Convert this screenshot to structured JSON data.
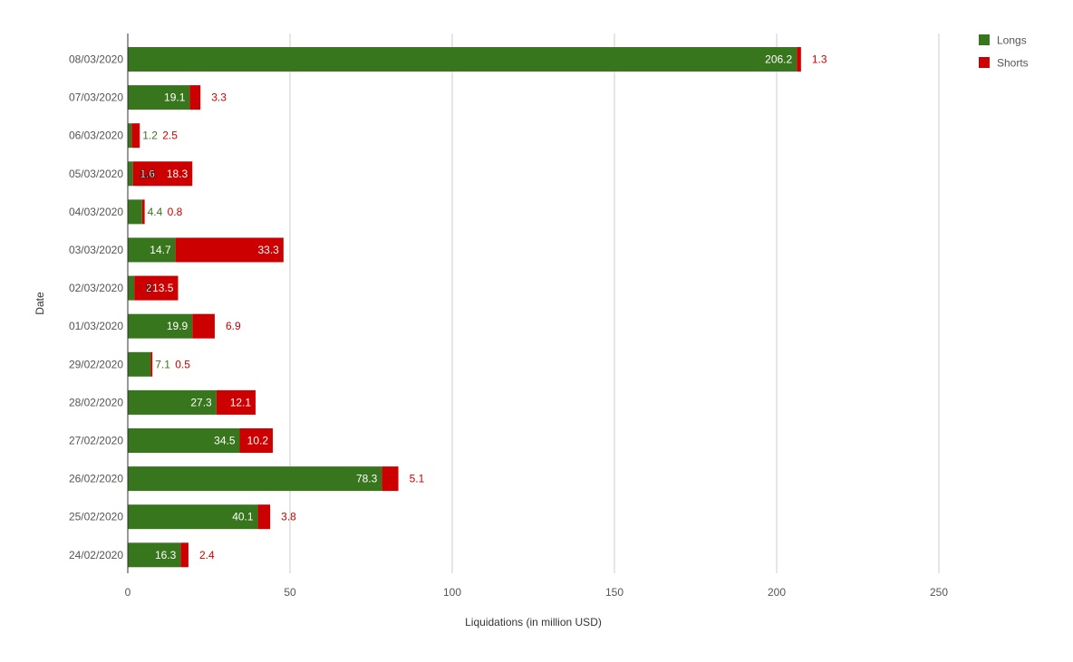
{
  "chart_data": {
    "type": "bar",
    "orientation": "horizontal",
    "stacked": true,
    "xlabel": "Liquidations (in million USD)",
    "ylabel": "Date",
    "xlim": [
      0,
      250
    ],
    "xticks": [
      0,
      50,
      100,
      150,
      200,
      250
    ],
    "grid": true,
    "legend_position": "top-right",
    "categories": [
      "08/03/2020",
      "07/03/2020",
      "06/03/2020",
      "05/03/2020",
      "04/03/2020",
      "03/03/2020",
      "02/03/2020",
      "01/03/2020",
      "29/02/2020",
      "28/02/2020",
      "27/02/2020",
      "26/02/2020",
      "25/02/2020",
      "24/02/2020"
    ],
    "series": [
      {
        "name": "Longs",
        "color": "#38761d",
        "values": [
          206.2,
          19.1,
          1.2,
          1.6,
          4.4,
          14.7,
          2,
          19.9,
          7.1,
          27.3,
          34.5,
          78.3,
          40.1,
          16.3
        ]
      },
      {
        "name": "Shorts",
        "color": "#cc0000",
        "values": [
          1.3,
          3.3,
          2.5,
          18.3,
          0.8,
          33.3,
          13.5,
          6.9,
          0.5,
          12.1,
          10.2,
          5.1,
          3.8,
          2.4
        ]
      }
    ]
  }
}
